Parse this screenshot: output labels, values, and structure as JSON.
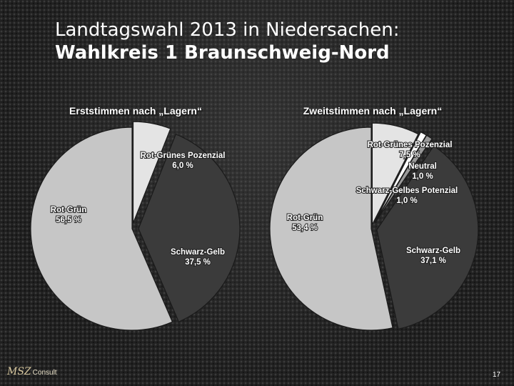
{
  "slide": {
    "title_line1": "Landtagswahl 2013 in Niedersachen:",
    "title_line2": "Wahlkreis 1 Braunschweig-Nord",
    "logo_main": "MSZ",
    "logo_sub": "Consult",
    "page_number": "17"
  },
  "colors": {
    "rot_gruen": "#c6c6c6",
    "rot_gruenes_potenzial": "#e4e4e4",
    "neutral": "#ffffff",
    "schwarz_gelbes_potenzial": "#9a9a9a",
    "schwarz_gelb": "#3b3b3b"
  },
  "chart_data": [
    {
      "type": "pie",
      "title": "Erststimmen nach „Lagern“",
      "slices": [
        {
          "name": "Rot-Grün",
          "value": 56.5,
          "label": "56,5 %"
        },
        {
          "name": "Rot-Grünes Pozenzial",
          "value": 6.0,
          "label": "6,0 %"
        },
        {
          "name": "Schwarz-Gelb",
          "value": 37.5,
          "label": "37,5 %"
        }
      ]
    },
    {
      "type": "pie",
      "title": "Zweitstimmen nach „Lagern“",
      "slices": [
        {
          "name": "Rot-Grün",
          "value": 53.4,
          "label": "53,4 %"
        },
        {
          "name": "Rot-Grünes Pozenzial",
          "value": 7.5,
          "label": "7,5 %"
        },
        {
          "name": "Neutral",
          "value": 1.0,
          "label": "1,0 %"
        },
        {
          "name": "Schwarz-Gelbes Potenzial",
          "value": 1.0,
          "label": "1,0 %"
        },
        {
          "name": "Schwarz-Gelb",
          "value": 37.1,
          "label": "37,1 %"
        }
      ]
    }
  ]
}
